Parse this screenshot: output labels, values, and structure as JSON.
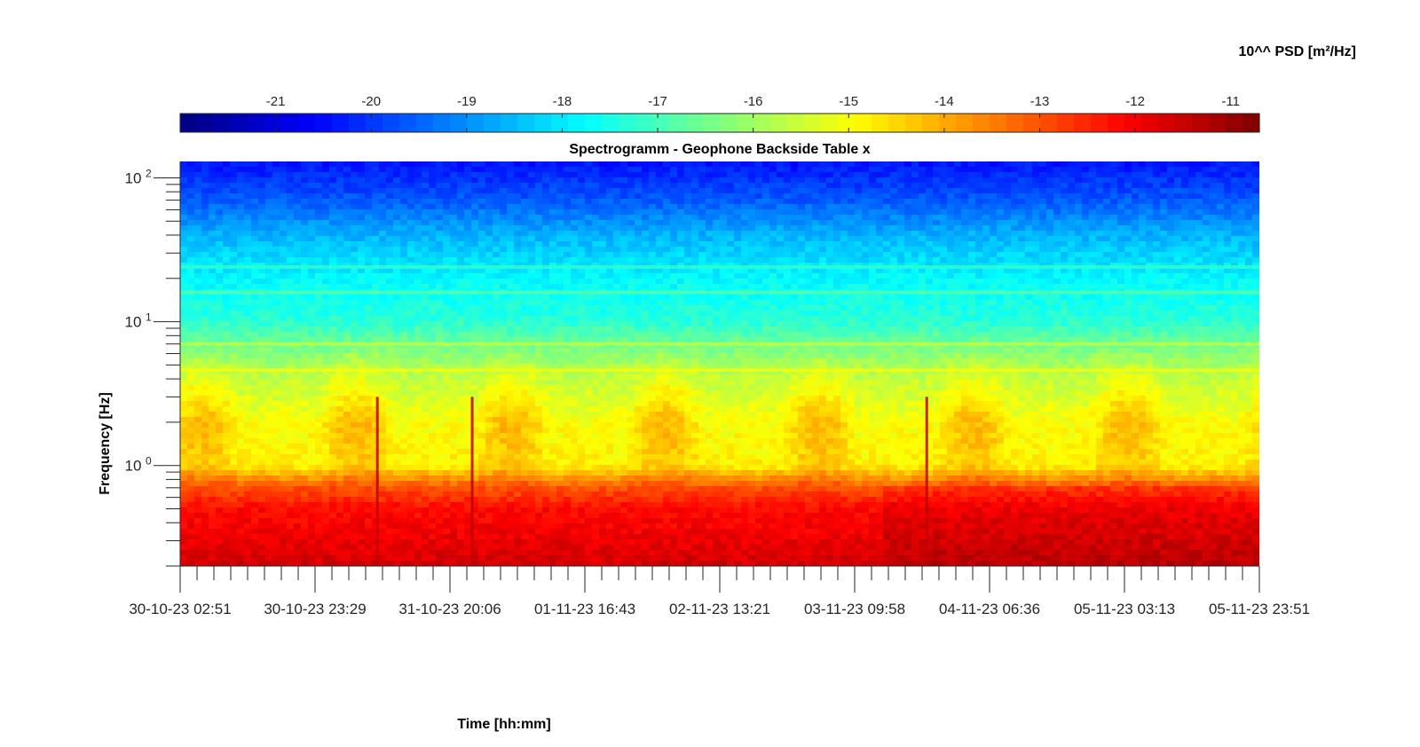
{
  "chart_data": {
    "type": "heatmap",
    "title": "Spectrogramm - Geophone Backside Table x",
    "xlabel": "Time [hh:mm]",
    "ylabel": "Frequency [Hz]",
    "colorbar": {
      "label": "10^^ PSD [m²/Hz]",
      "range": [
        -22,
        -10.7
      ],
      "tick_values": [
        -21,
        -20,
        -19,
        -18,
        -17,
        -16,
        -15,
        -14,
        -13,
        -12,
        -11
      ],
      "tick_labels": [
        "-21",
        "-20",
        "-19",
        "-18",
        "-17",
        "-16",
        "-15",
        "-14",
        "-13",
        "-12",
        "-11"
      ],
      "colormap": "jet"
    },
    "x_tick_labels": [
      "30-10-23 02:51",
      "30-10-23 23:29",
      "31-10-23 20:06",
      "01-11-23 16:43",
      "02-11-23 13:21",
      "03-11-23 09:58",
      "04-11-23 06:36",
      "05-11-23 03:13",
      "05-11-23 23:51"
    ],
    "xlim": [
      "30-10-23 02:51",
      "05-11-23 23:51"
    ],
    "y_scale": "log",
    "ylim": [
      0.2,
      130
    ],
    "y_ticks": [
      1,
      10,
      100
    ],
    "y_tick_labels": [
      {
        "base": "10",
        "exp": "0"
      },
      {
        "base": "10",
        "exp": "1"
      },
      {
        "base": "10",
        "exp": "2"
      }
    ],
    "psd_profile": [
      {
        "frequency": 0.2,
        "log10_psd": -11.6
      },
      {
        "frequency": 0.3,
        "log10_psd": -11.9
      },
      {
        "frequency": 0.5,
        "log10_psd": -12.2
      },
      {
        "frequency": 0.7,
        "log10_psd": -13.0
      },
      {
        "frequency": 1.0,
        "log10_psd": -14.8
      },
      {
        "frequency": 2.0,
        "log10_psd": -15.0
      },
      {
        "frequency": 4.0,
        "log10_psd": -15.6
      },
      {
        "frequency": 7.0,
        "log10_psd": -16.5
      },
      {
        "frequency": 10.0,
        "log10_psd": -17.3
      },
      {
        "frequency": 20.0,
        "log10_psd": -17.8
      },
      {
        "frequency": 40.0,
        "log10_psd": -18.6
      },
      {
        "frequency": 70.0,
        "log10_psd": -19.6
      },
      {
        "frequency": 130.0,
        "log10_psd": -20.4
      }
    ],
    "spectral_lines_hz": [
      24,
      16,
      7,
      4.6
    ],
    "transient_events": [
      "31-10-23 09:00",
      "31-10-23 23:30",
      "03-11-23 21:00"
    ],
    "grid": false
  }
}
